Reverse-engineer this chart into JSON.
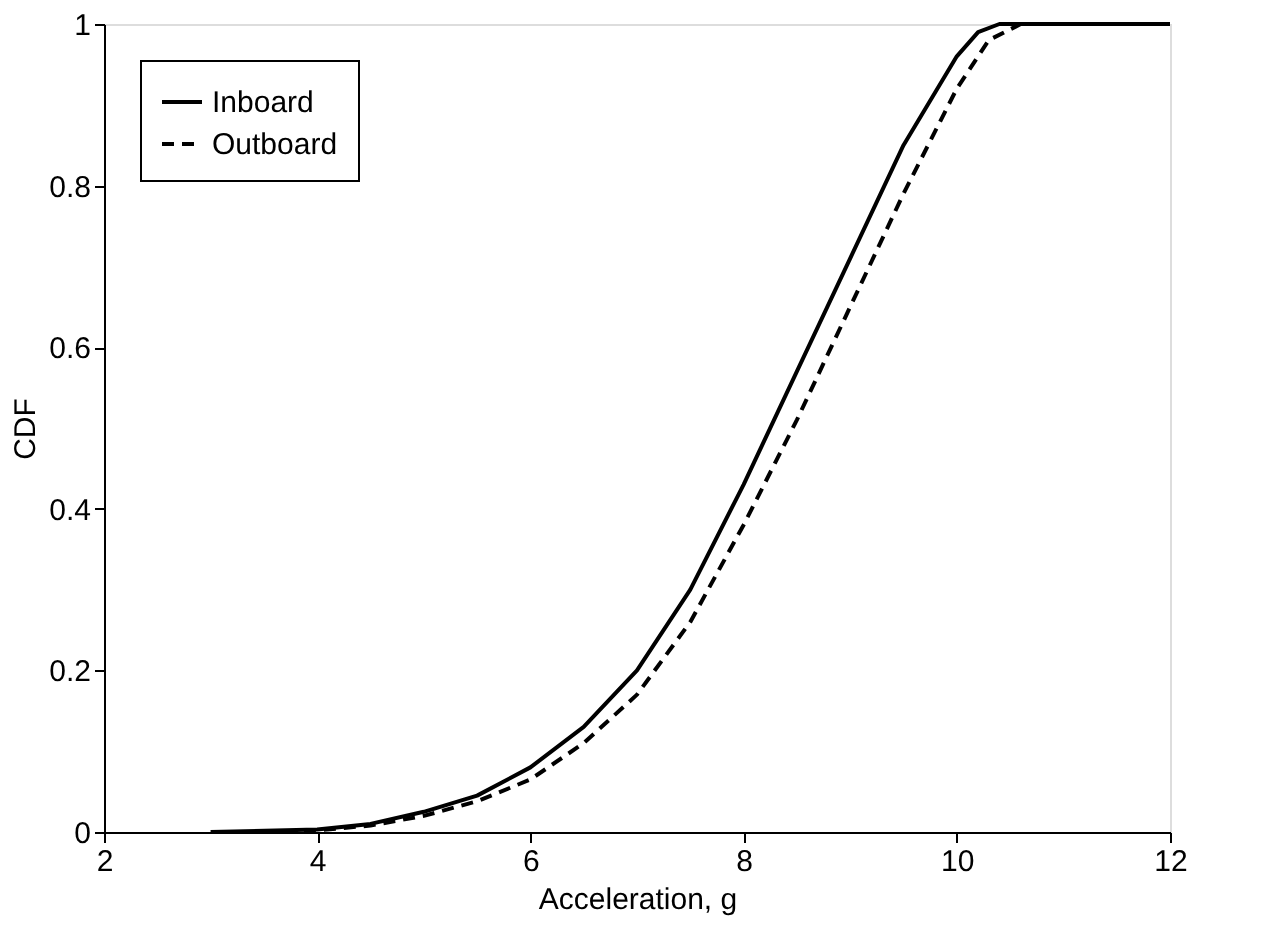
{
  "chart_data": {
    "type": "line",
    "xlabel": "Acceleration, g",
    "ylabel": "CDF",
    "xlim": [
      2,
      12
    ],
    "ylim": [
      0,
      1
    ],
    "xticks": [
      2,
      4,
      6,
      8,
      10,
      12
    ],
    "yticks": [
      0,
      0.2,
      0.4,
      0.6,
      0.8,
      1
    ],
    "grid": false,
    "legend": "top left",
    "marker": "none",
    "series": [
      {
        "name": "Inboard",
        "color": "#000000",
        "line_style": "solid",
        "x": [
          3.0,
          4.0,
          4.5,
          5.0,
          5.5,
          6.0,
          6.5,
          7.0,
          7.5,
          8.0,
          8.5,
          9.0,
          9.5,
          10.0,
          10.2,
          10.4,
          12.0
        ],
        "values": [
          0,
          0.003,
          0.01,
          0.025,
          0.045,
          0.08,
          0.13,
          0.2,
          0.3,
          0.43,
          0.57,
          0.71,
          0.85,
          0.96,
          0.99,
          1.0,
          1.0
        ]
      },
      {
        "name": "Outboard",
        "color": "#000000",
        "line_style": "dashed",
        "x": [
          3.5,
          4.0,
          4.5,
          5.0,
          5.5,
          6.0,
          6.5,
          7.0,
          7.5,
          8.0,
          8.5,
          9.0,
          9.5,
          10.0,
          10.3,
          10.6
        ],
        "values": [
          0,
          0.002,
          0.008,
          0.02,
          0.038,
          0.065,
          0.11,
          0.17,
          0.26,
          0.38,
          0.51,
          0.65,
          0.79,
          0.92,
          0.98,
          1.0
        ]
      }
    ]
  }
}
